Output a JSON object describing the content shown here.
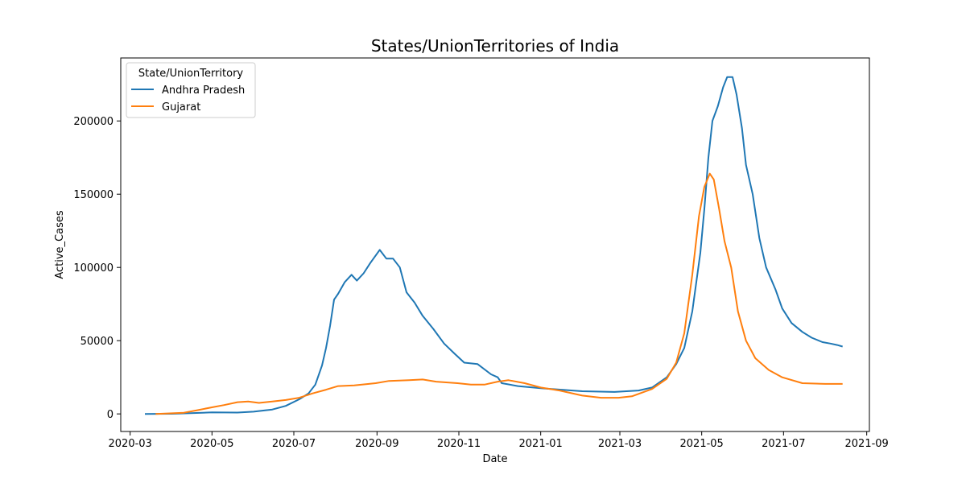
{
  "chart_data": {
    "type": "line",
    "title": "States/UnionTerritories of India",
    "xlabel": "Date",
    "ylabel": "Active_Cases",
    "xlim": [
      "2020-02-23",
      "2021-09-03"
    ],
    "ylim": [
      -12000,
      243000
    ],
    "x_ticks": [
      "2020-03-01",
      "2020-05-01",
      "2020-07-01",
      "2020-09-01",
      "2020-11-01",
      "2021-01-01",
      "2021-03-01",
      "2021-05-01",
      "2021-07-01",
      "2021-09-01"
    ],
    "x_tick_labels": [
      "2020-03",
      "2020-05",
      "2020-07",
      "2020-09",
      "2020-11",
      "2021-01",
      "2021-03",
      "2021-05",
      "2021-07",
      "2021-09"
    ],
    "y_ticks": [
      0,
      50000,
      100000,
      150000,
      200000
    ],
    "y_tick_labels": [
      "0",
      "50000",
      "100000",
      "150000",
      "200000"
    ],
    "grid": false,
    "legend": {
      "title": "State/UnionTerritory",
      "position": "top-left"
    },
    "series": [
      {
        "name": "Andhra Pradesh",
        "color": "#1f77b4",
        "points": [
          [
            "2020-03-12",
            0
          ],
          [
            "2020-04-01",
            100
          ],
          [
            "2020-04-15",
            500
          ],
          [
            "2020-05-01",
            1000
          ],
          [
            "2020-05-20",
            900
          ],
          [
            "2020-06-01",
            1500
          ],
          [
            "2020-06-15",
            3000
          ],
          [
            "2020-06-25",
            5500
          ],
          [
            "2020-07-05",
            10000
          ],
          [
            "2020-07-12",
            14000
          ],
          [
            "2020-07-17",
            20000
          ],
          [
            "2020-07-22",
            33000
          ],
          [
            "2020-07-25",
            45000
          ],
          [
            "2020-07-28",
            60000
          ],
          [
            "2020-07-31",
            78000
          ],
          [
            "2020-08-03",
            82000
          ],
          [
            "2020-08-08",
            90000
          ],
          [
            "2020-08-13",
            95000
          ],
          [
            "2020-08-17",
            91000
          ],
          [
            "2020-08-22",
            96000
          ],
          [
            "2020-08-27",
            103000
          ],
          [
            "2020-09-03",
            112000
          ],
          [
            "2020-09-08",
            106000
          ],
          [
            "2020-09-13",
            106000
          ],
          [
            "2020-09-18",
            100000
          ],
          [
            "2020-09-23",
            83000
          ],
          [
            "2020-09-29",
            76000
          ],
          [
            "2020-10-05",
            67000
          ],
          [
            "2020-10-13",
            58000
          ],
          [
            "2020-10-21",
            48000
          ],
          [
            "2020-10-29",
            41000
          ],
          [
            "2020-11-05",
            35000
          ],
          [
            "2020-11-15",
            34000
          ],
          [
            "2020-11-25",
            27000
          ],
          [
            "2020-11-30",
            25000
          ],
          [
            "2020-12-03",
            21000
          ],
          [
            "2020-12-15",
            19000
          ],
          [
            "2021-01-01",
            17500
          ],
          [
            "2021-02-01",
            15500
          ],
          [
            "2021-02-25",
            15000
          ],
          [
            "2021-03-15",
            16000
          ],
          [
            "2021-03-25",
            18000
          ],
          [
            "2021-04-05",
            25000
          ],
          [
            "2021-04-12",
            34000
          ],
          [
            "2021-04-18",
            45000
          ],
          [
            "2021-04-24",
            70000
          ],
          [
            "2021-04-30",
            110000
          ],
          [
            "2021-05-03",
            140000
          ],
          [
            "2021-05-06",
            175000
          ],
          [
            "2021-05-09",
            200000
          ],
          [
            "2021-05-13",
            210000
          ],
          [
            "2021-05-17",
            223000
          ],
          [
            "2021-05-20",
            230000
          ],
          [
            "2021-05-24",
            230000
          ],
          [
            "2021-05-27",
            218000
          ],
          [
            "2021-05-31",
            195000
          ],
          [
            "2021-06-03",
            170000
          ],
          [
            "2021-06-08",
            150000
          ],
          [
            "2021-06-13",
            120000
          ],
          [
            "2021-06-18",
            100000
          ],
          [
            "2021-06-25",
            85000
          ],
          [
            "2021-06-30",
            72000
          ],
          [
            "2021-07-07",
            62000
          ],
          [
            "2021-07-15",
            56000
          ],
          [
            "2021-07-22",
            52000
          ],
          [
            "2021-07-30",
            49000
          ],
          [
            "2021-08-05",
            48000
          ],
          [
            "2021-08-10",
            47000
          ],
          [
            "2021-08-14",
            46000
          ]
        ]
      },
      {
        "name": "Gujarat",
        "color": "#ff7f0e",
        "points": [
          [
            "2020-03-20",
            0
          ],
          [
            "2020-04-10",
            800
          ],
          [
            "2020-04-20",
            2500
          ],
          [
            "2020-05-01",
            4500
          ],
          [
            "2020-05-10",
            6000
          ],
          [
            "2020-05-20",
            8000
          ],
          [
            "2020-05-28",
            8500
          ],
          [
            "2020-06-05",
            7500
          ],
          [
            "2020-06-15",
            8500
          ],
          [
            "2020-06-25",
            9500
          ],
          [
            "2020-07-05",
            11000
          ],
          [
            "2020-07-15",
            14000
          ],
          [
            "2020-07-25",
            16500
          ],
          [
            "2020-08-03",
            19000
          ],
          [
            "2020-08-15",
            19500
          ],
          [
            "2020-08-31",
            21000
          ],
          [
            "2020-09-10",
            22500
          ],
          [
            "2020-09-25",
            23000
          ],
          [
            "2020-10-05",
            23500
          ],
          [
            "2020-10-15",
            22000
          ],
          [
            "2020-10-31",
            21000
          ],
          [
            "2020-11-10",
            20000
          ],
          [
            "2020-11-20",
            20000
          ],
          [
            "2020-11-30",
            22000
          ],
          [
            "2020-12-08",
            23000
          ],
          [
            "2020-12-20",
            21000
          ],
          [
            "2021-01-01",
            18000
          ],
          [
            "2021-01-15",
            16000
          ],
          [
            "2021-02-01",
            12500
          ],
          [
            "2021-02-15",
            11000
          ],
          [
            "2021-02-28",
            11000
          ],
          [
            "2021-03-10",
            12000
          ],
          [
            "2021-03-25",
            17000
          ],
          [
            "2021-04-05",
            24000
          ],
          [
            "2021-04-12",
            35000
          ],
          [
            "2021-04-18",
            55000
          ],
          [
            "2021-04-24",
            95000
          ],
          [
            "2021-04-29",
            135000
          ],
          [
            "2021-05-03",
            155000
          ],
          [
            "2021-05-07",
            164000
          ],
          [
            "2021-05-10",
            160000
          ],
          [
            "2021-05-14",
            140000
          ],
          [
            "2021-05-18",
            118000
          ],
          [
            "2021-05-23",
            100000
          ],
          [
            "2021-05-28",
            70000
          ],
          [
            "2021-06-03",
            50000
          ],
          [
            "2021-06-10",
            38000
          ],
          [
            "2021-06-20",
            30000
          ],
          [
            "2021-06-30",
            25000
          ],
          [
            "2021-07-15",
            21000
          ],
          [
            "2021-08-01",
            20500
          ],
          [
            "2021-08-14",
            20500
          ]
        ]
      }
    ]
  }
}
